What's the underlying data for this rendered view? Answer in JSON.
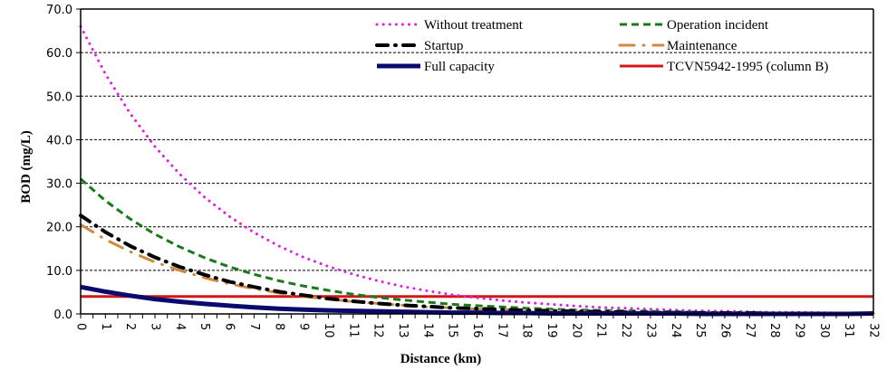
{
  "chart_data": {
    "type": "line",
    "title": "",
    "xlabel": "Distance (km)",
    "ylabel": "BOD (mg/L)",
    "xlim": [
      0,
      32
    ],
    "ylim": [
      0,
      70
    ],
    "x_ticks": [
      0,
      1,
      2,
      3,
      4,
      5,
      6,
      7,
      8,
      9,
      10,
      11,
      12,
      13,
      14,
      15,
      16,
      17,
      18,
      19,
      20,
      21,
      22,
      23,
      24,
      25,
      26,
      27,
      28,
      29,
      30,
      31,
      32
    ],
    "y_ticks": [
      "0.0",
      "10.0",
      "20.0",
      "30.0",
      "40.0",
      "50.0",
      "60.0",
      "70.0"
    ],
    "y_tick_values": [
      0,
      10,
      20,
      30,
      40,
      50,
      60,
      70
    ],
    "grid": "horizontal dashed",
    "legend_position": "top-right",
    "x": [
      0,
      1,
      2,
      3,
      4,
      5,
      6,
      7,
      8,
      9,
      10,
      11,
      12,
      13,
      14,
      15,
      16,
      17,
      18,
      19,
      20,
      21,
      22,
      23,
      24,
      25,
      26,
      27,
      28,
      29,
      30,
      31,
      32
    ],
    "series": [
      {
        "name": "Without treatment",
        "color": "#e020e0",
        "style": "dotted",
        "values": [
          66.0,
          55.1,
          46.0,
          38.4,
          32.1,
          26.8,
          22.4,
          18.7,
          15.6,
          13.0,
          10.9,
          9.1,
          7.6,
          6.3,
          5.3,
          4.4,
          3.7,
          3.1,
          2.6,
          2.2,
          1.8,
          1.5,
          1.3,
          1.1,
          0.9,
          0.7,
          0.6,
          0.5,
          0.4,
          0.4,
          0.3,
          0.2,
          0.2
        ]
      },
      {
        "name": "Operation incident",
        "color": "#1a7a1a",
        "style": "dashed",
        "values": [
          31.0,
          26.0,
          21.8,
          18.3,
          15.4,
          12.9,
          10.8,
          9.1,
          7.6,
          6.4,
          5.4,
          4.5,
          3.8,
          3.2,
          2.7,
          2.2,
          1.9,
          1.6,
          1.3,
          1.1,
          0.9,
          0.8,
          0.7,
          0.6,
          0.5,
          0.4,
          0.3,
          0.3,
          0.2,
          0.2,
          0.2,
          0.1,
          0.1
        ]
      },
      {
        "name": "Startup",
        "color": "#000000",
        "style": "dash-dot",
        "values": [
          22.6,
          18.8,
          15.6,
          13.0,
          10.8,
          9.0,
          7.4,
          6.2,
          5.1,
          4.3,
          3.5,
          2.9,
          2.4,
          2.0,
          1.7,
          1.4,
          1.2,
          1.0,
          0.8,
          0.7,
          0.6,
          0.5,
          0.4,
          0.3,
          0.3,
          0.2,
          0.2,
          0.2,
          0.1,
          0.1,
          0.1,
          0.1,
          0.1
        ]
      },
      {
        "name": "Maintenance",
        "color": "#d08a40",
        "style": "long-dash-dot",
        "values": [
          20.5,
          17.1,
          14.3,
          11.9,
          10.0,
          8.3,
          6.9,
          5.8,
          4.8,
          4.0,
          3.4,
          2.8,
          2.4,
          2.0,
          1.6,
          1.4,
          1.1,
          1.0,
          0.8,
          0.7,
          0.6,
          0.5,
          0.4,
          0.3,
          0.3,
          0.2,
          0.2,
          0.2,
          0.1,
          0.1,
          0.1,
          0.1,
          0.1
        ]
      },
      {
        "name": "Full capacity",
        "color": "#0a0a6e",
        "style": "solid-thick",
        "values": [
          6.2,
          5.1,
          4.2,
          3.4,
          2.8,
          2.3,
          1.9,
          1.5,
          1.2,
          1.0,
          0.8,
          0.7,
          0.6,
          0.5,
          0.4,
          0.3,
          0.3,
          0.2,
          0.2,
          0.1,
          0.1,
          0.1,
          0.1,
          0.1,
          0.1,
          0.0,
          0.0,
          0.0,
          0.0,
          0.0,
          0.0,
          0.0,
          0.1
        ]
      },
      {
        "name": "TCVN5942-1995 (column B)",
        "color": "#d01818",
        "style": "solid",
        "values": [
          4.0,
          4.0,
          4.0,
          4.0,
          4.0,
          4.0,
          4.0,
          4.0,
          4.0,
          4.0,
          4.0,
          4.0,
          4.0,
          4.0,
          4.0,
          4.0,
          4.0,
          4.0,
          4.0,
          4.0,
          4.0,
          4.0,
          4.0,
          4.0,
          4.0,
          4.0,
          4.0,
          4.0,
          4.0,
          4.0,
          4.0,
          4.0,
          4.0
        ]
      }
    ],
    "legend": [
      {
        "label": "Without treatment",
        "series": 0
      },
      {
        "label": "Operation incident",
        "series": 1
      },
      {
        "label": "Startup",
        "series": 2
      },
      {
        "label": "Maintenance",
        "series": 3
      },
      {
        "label": "Full capacity",
        "series": 4
      },
      {
        "label": "TCVN5942-1995 (column B)",
        "series": 5
      }
    ]
  }
}
